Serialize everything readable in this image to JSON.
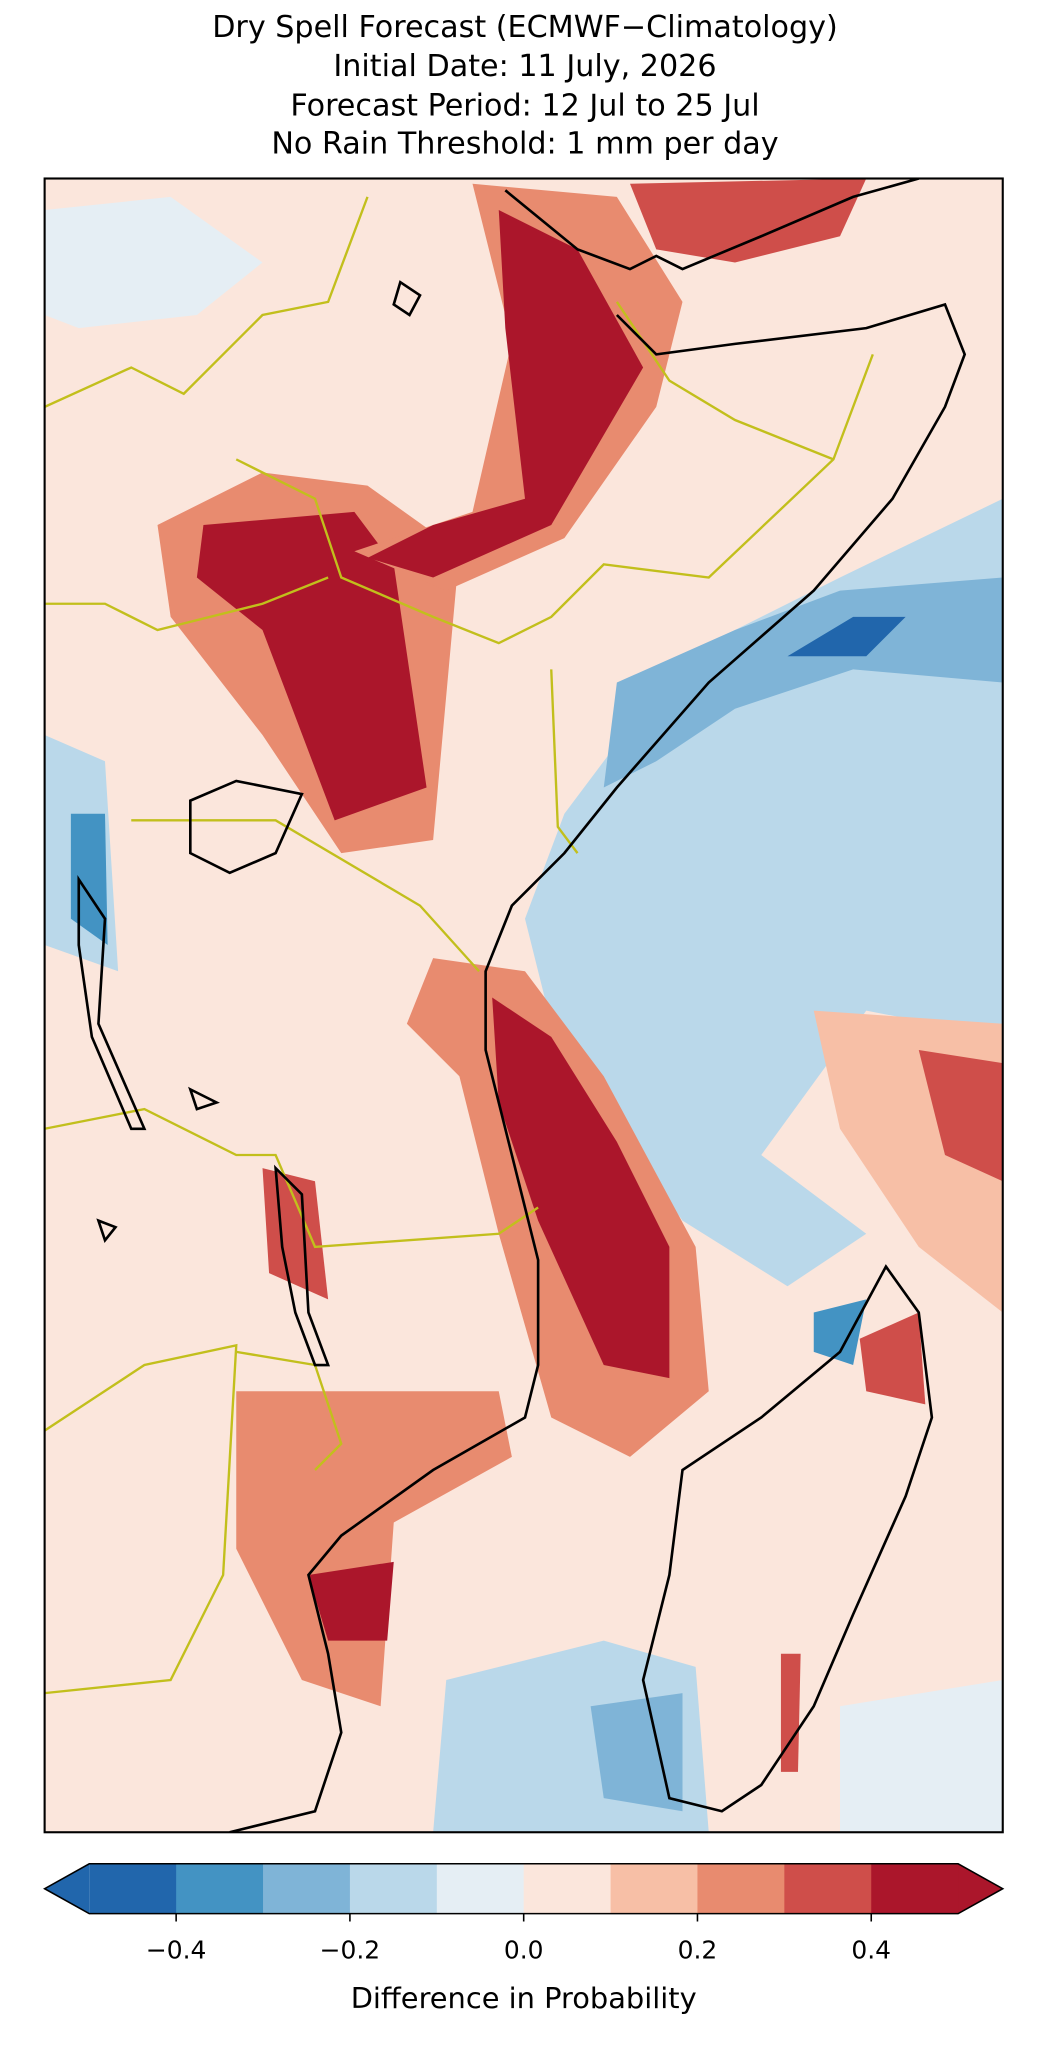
{
  "title": [
    "Dry Spell Forecast (ECMWF−Climatology)",
    "Initial Date: 11 July, 2026",
    "Forecast Period: 12 Jul to 25 Jul",
    "No Rain Threshold: 1 mm per day"
  ],
  "colorbar": {
    "label": "Difference in Probability",
    "boundaries": [
      -0.5,
      -0.4,
      -0.3,
      -0.2,
      -0.1,
      0,
      0.1,
      0.2,
      0.3,
      0.4,
      0.5
    ],
    "colors": [
      "#2166ac",
      "#4393c3",
      "#7fb4d7",
      "#bad8ea",
      "#e5eef4",
      "#fbe6dc",
      "#f7bfa6",
      "#e88b6f",
      "#cf4e4a",
      "#ab162b"
    ],
    "extend": "both",
    "ticks": [
      {
        "value": -0.4,
        "label": "−0.4"
      },
      {
        "value": -0.2,
        "label": "−0.2"
      },
      {
        "value": 0,
        "label": "0.0"
      },
      0.2,
      0.4
    ]
  }
}
